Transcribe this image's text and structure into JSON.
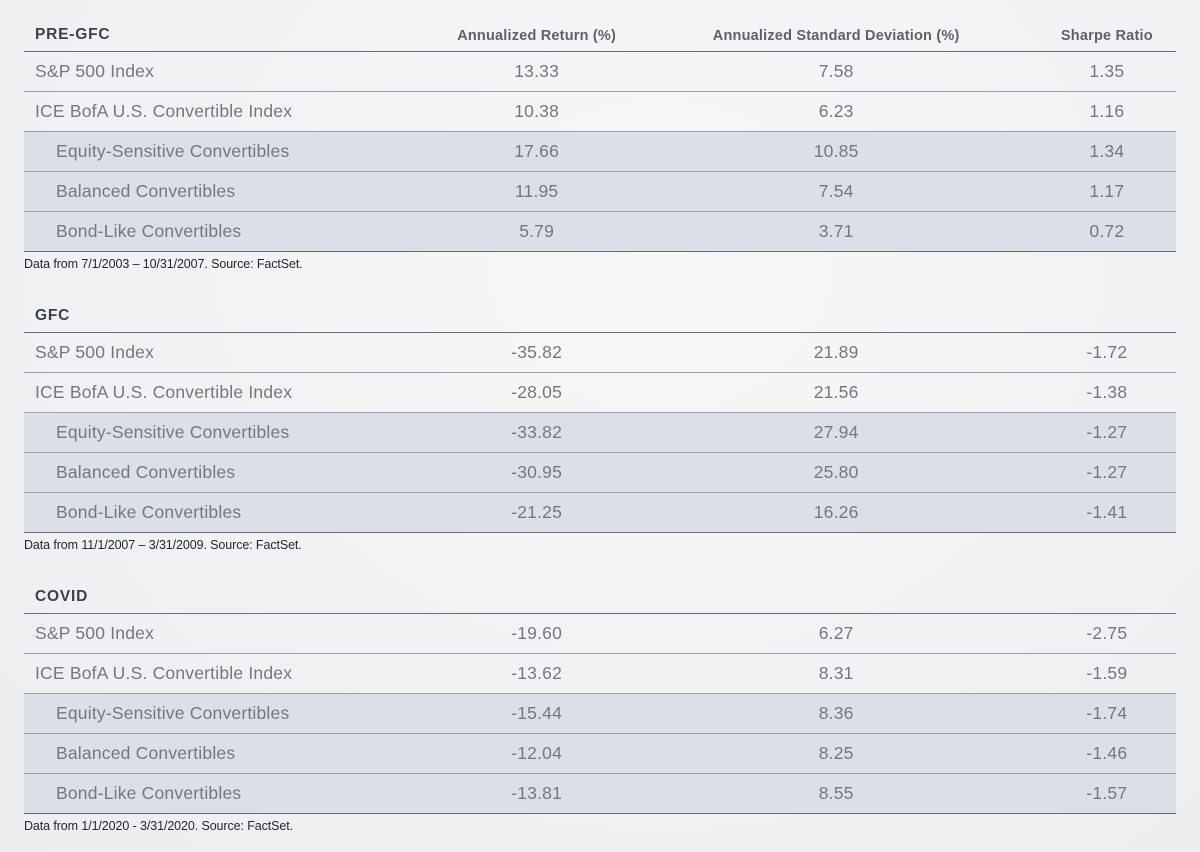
{
  "colors": {
    "page_bg": "#f2f2f4",
    "row_shade": "#dbdfe7",
    "rule_dark": "#666d75",
    "rule_light": "#989fa7",
    "title_text": "#3a4149",
    "header_text": "#5d6268",
    "cell_text": "#74787e",
    "footnote_text": "#23272c"
  },
  "table": {
    "column_headers": [
      "Annualized Return (%)",
      "Annualized Standard Deviation (%)",
      "Sharpe Ratio"
    ],
    "sections": [
      {
        "title": "PRE-GFC",
        "show_headers": true,
        "rows": [
          {
            "label": "S&P 500 Index",
            "indent": false,
            "values": [
              "13.33",
              "7.58",
              "1.35"
            ]
          },
          {
            "label": "ICE BofA U.S. Convertible Index",
            "indent": false,
            "values": [
              "10.38",
              "6.23",
              "1.16"
            ]
          },
          {
            "label": "Equity-Sensitive Convertibles",
            "indent": true,
            "values": [
              "17.66",
              "10.85",
              "1.34"
            ]
          },
          {
            "label": "Balanced Convertibles",
            "indent": true,
            "values": [
              "11.95",
              "7.54",
              "1.17"
            ]
          },
          {
            "label": "Bond-Like Convertibles",
            "indent": true,
            "values": [
              "5.79",
              "3.71",
              "0.72"
            ]
          }
        ],
        "footnote": "Data from 7/1/2003 – 10/31/2007. Source: FactSet."
      },
      {
        "title": "GFC",
        "show_headers": false,
        "rows": [
          {
            "label": "S&P 500 Index",
            "indent": false,
            "values": [
              "-35.82",
              "21.89",
              "-1.72"
            ]
          },
          {
            "label": "ICE BofA U.S. Convertible Index",
            "indent": false,
            "values": [
              "-28.05",
              "21.56",
              "-1.38"
            ]
          },
          {
            "label": "Equity-Sensitive Convertibles",
            "indent": true,
            "values": [
              "-33.82",
              "27.94",
              "-1.27"
            ]
          },
          {
            "label": "Balanced Convertibles",
            "indent": true,
            "values": [
              "-30.95",
              "25.80",
              "-1.27"
            ]
          },
          {
            "label": "Bond-Like Convertibles",
            "indent": true,
            "values": [
              "-21.25",
              "16.26",
              "-1.41"
            ]
          }
        ],
        "footnote": "Data from 11/1/2007 – 3/31/2009. Source: FactSet."
      },
      {
        "title": "COVID",
        "show_headers": false,
        "rows": [
          {
            "label": "S&P 500 Index",
            "indent": false,
            "values": [
              "-19.60",
              "6.27",
              "-2.75"
            ]
          },
          {
            "label": "ICE BofA U.S. Convertible Index",
            "indent": false,
            "values": [
              "-13.62",
              "8.31",
              "-1.59"
            ]
          },
          {
            "label": "Equity-Sensitive Convertibles",
            "indent": true,
            "values": [
              "-15.44",
              "8.36",
              "-1.74"
            ]
          },
          {
            "label": "Balanced Convertibles",
            "indent": true,
            "values": [
              "-12.04",
              "8.25",
              "-1.46"
            ]
          },
          {
            "label": "Bond-Like Convertibles",
            "indent": true,
            "values": [
              "-13.81",
              "8.55",
              "-1.57"
            ]
          }
        ],
        "footnote": "Data from 1/1/2020 - 3/31/2020. Source: FactSet."
      }
    ]
  },
  "chart_data": [
    {
      "type": "table",
      "title": "PRE-GFC",
      "columns": [
        "",
        "Annualized Return (%)",
        "Annualized Standard Deviation (%)",
        "Sharpe Ratio"
      ],
      "rows": [
        [
          "S&P 500 Index",
          13.33,
          7.58,
          1.35
        ],
        [
          "ICE BofA U.S. Convertible Index",
          10.38,
          6.23,
          1.16
        ],
        [
          "Equity-Sensitive Convertibles",
          17.66,
          10.85,
          1.34
        ],
        [
          "Balanced Convertibles",
          11.95,
          7.54,
          1.17
        ],
        [
          "Bond-Like Convertibles",
          5.79,
          3.71,
          0.72
        ]
      ],
      "footnote": "Data from 7/1/2003 – 10/31/2007. Source: FactSet."
    },
    {
      "type": "table",
      "title": "GFC",
      "columns": [
        "",
        "Annualized Return (%)",
        "Annualized Standard Deviation (%)",
        "Sharpe Ratio"
      ],
      "rows": [
        [
          "S&P 500 Index",
          -35.82,
          21.89,
          -1.72
        ],
        [
          "ICE BofA U.S. Convertible Index",
          -28.05,
          21.56,
          -1.38
        ],
        [
          "Equity-Sensitive Convertibles",
          -33.82,
          27.94,
          -1.27
        ],
        [
          "Balanced Convertibles",
          -30.95,
          25.8,
          -1.27
        ],
        [
          "Bond-Like Convertibles",
          -21.25,
          16.26,
          -1.41
        ]
      ],
      "footnote": "Data from 11/1/2007 – 3/31/2009. Source: FactSet."
    },
    {
      "type": "table",
      "title": "COVID",
      "columns": [
        "",
        "Annualized Return (%)",
        "Annualized Standard Deviation (%)",
        "Sharpe Ratio"
      ],
      "rows": [
        [
          "S&P 500 Index",
          -19.6,
          6.27,
          -2.75
        ],
        [
          "ICE BofA U.S. Convertible Index",
          -13.62,
          8.31,
          -1.59
        ],
        [
          "Equity-Sensitive Convertibles",
          -15.44,
          8.36,
          -1.74
        ],
        [
          "Balanced Convertibles",
          -12.04,
          8.25,
          -1.46
        ],
        [
          "Bond-Like Convertibles",
          -13.81,
          8.55,
          -1.57
        ]
      ],
      "footnote": "Data from 1/1/2020 - 3/31/2020. Source: FactSet."
    }
  ]
}
